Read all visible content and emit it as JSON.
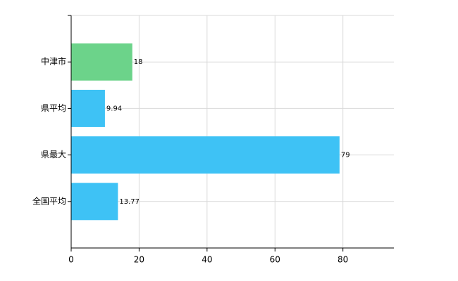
{
  "chart_data": {
    "type": "hbar",
    "categories": [
      "中津市",
      "県平均",
      "県最大",
      "全国平均"
    ],
    "values": [
      18,
      9.94,
      79,
      13.77
    ],
    "colors": [
      "#6cd38a",
      "#3ec2f5",
      "#3ec2f5",
      "#3ec2f5"
    ],
    "xlim": [
      0,
      95
    ],
    "xticks": [
      0,
      20,
      40,
      60,
      80
    ],
    "grid": true
  }
}
